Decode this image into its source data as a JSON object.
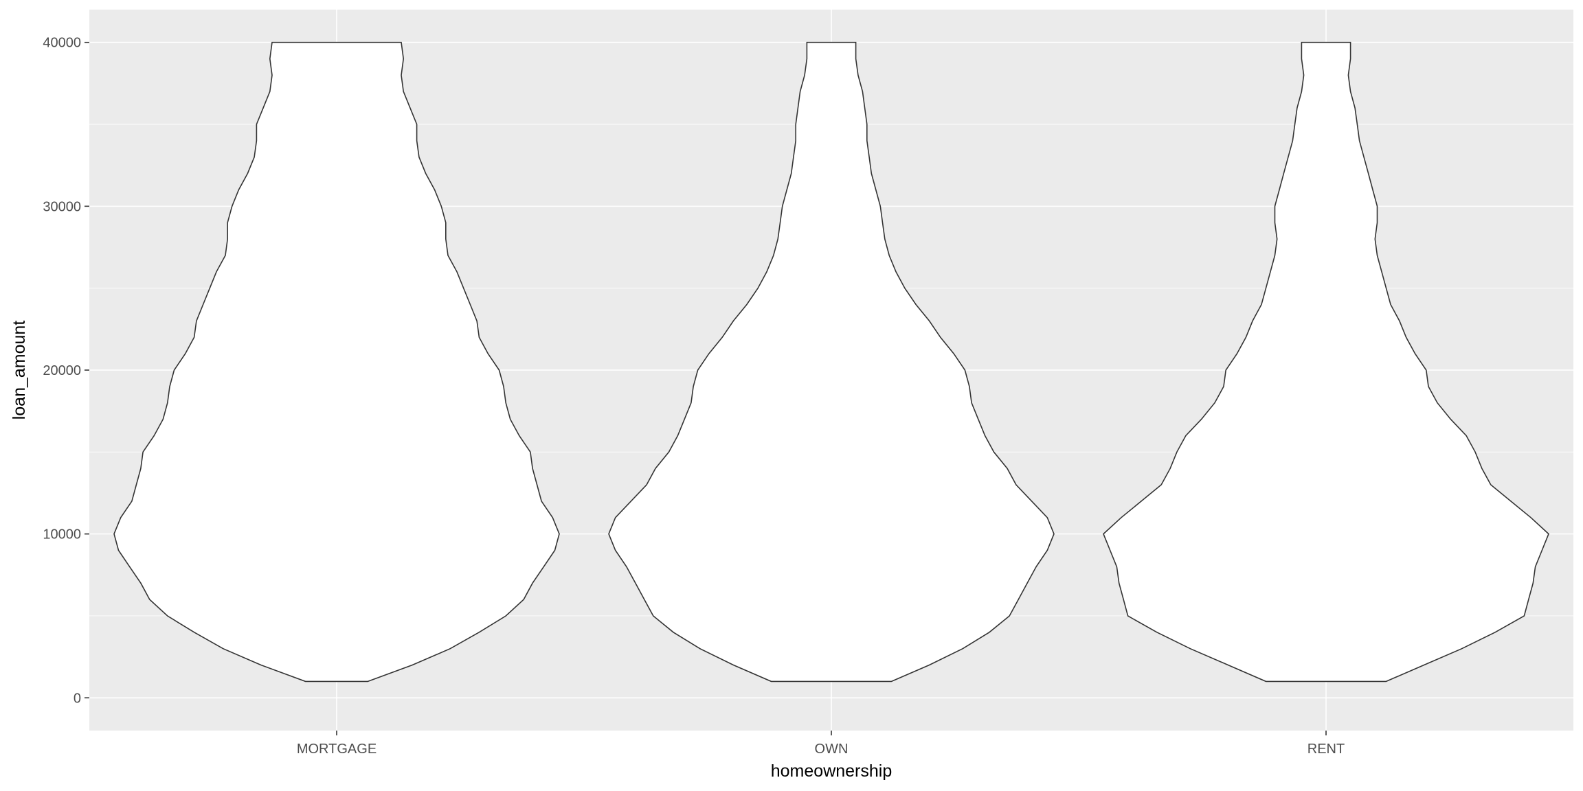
{
  "chart_data": {
    "type": "violin",
    "xlabel": "homeownership",
    "ylabel": "loan_amount",
    "categories": [
      "MORTGAGE",
      "OWN",
      "RENT"
    ],
    "ylim": [
      -2000,
      42000
    ],
    "y_ticks": [
      0,
      10000,
      20000,
      30000,
      40000
    ],
    "y_tick_labels": [
      "0",
      "10000",
      "20000",
      "30000",
      "40000"
    ],
    "grid": true,
    "legend": "none",
    "colors": {
      "panel_background": "#ebebeb",
      "grid": "#ffffff",
      "violin_fill": "#ffffff",
      "violin_outline": "#333333",
      "tick_label": "#4d4d4d",
      "axis_title": "#000000"
    },
    "violins": [
      {
        "category": "MORTGAGE",
        "range": [
          1000,
          40000
        ],
        "density_profile": [
          [
            1000,
            0.14
          ],
          [
            2000,
            0.34
          ],
          [
            3000,
            0.51
          ],
          [
            4000,
            0.64
          ],
          [
            5000,
            0.76
          ],
          [
            6000,
            0.84
          ],
          [
            7000,
            0.88
          ],
          [
            8000,
            0.93
          ],
          [
            9000,
            0.98
          ],
          [
            10000,
            1.0
          ],
          [
            11000,
            0.97
          ],
          [
            12000,
            0.92
          ],
          [
            13000,
            0.9
          ],
          [
            14000,
            0.88
          ],
          [
            15000,
            0.87
          ],
          [
            16000,
            0.82
          ],
          [
            17000,
            0.78
          ],
          [
            18000,
            0.76
          ],
          [
            19000,
            0.75
          ],
          [
            20000,
            0.73
          ],
          [
            21000,
            0.68
          ],
          [
            22000,
            0.64
          ],
          [
            23000,
            0.63
          ],
          [
            24000,
            0.6
          ],
          [
            25000,
            0.57
          ],
          [
            26000,
            0.54
          ],
          [
            27000,
            0.5
          ],
          [
            28000,
            0.49
          ],
          [
            29000,
            0.49
          ],
          [
            30000,
            0.47
          ],
          [
            31000,
            0.44
          ],
          [
            32000,
            0.4
          ],
          [
            33000,
            0.37
          ],
          [
            34000,
            0.36
          ],
          [
            35000,
            0.36
          ],
          [
            36000,
            0.33
          ],
          [
            37000,
            0.3
          ],
          [
            38000,
            0.29
          ],
          [
            39000,
            0.3
          ],
          [
            40000,
            0.29
          ]
        ]
      },
      {
        "category": "OWN",
        "range": [
          1000,
          40000
        ],
        "density_profile": [
          [
            1000,
            0.27
          ],
          [
            2000,
            0.44
          ],
          [
            3000,
            0.59
          ],
          [
            4000,
            0.71
          ],
          [
            5000,
            0.8
          ],
          [
            6000,
            0.84
          ],
          [
            7000,
            0.88
          ],
          [
            8000,
            0.92
          ],
          [
            9000,
            0.97
          ],
          [
            10000,
            1.0
          ],
          [
            11000,
            0.97
          ],
          [
            12000,
            0.9
          ],
          [
            13000,
            0.83
          ],
          [
            14000,
            0.79
          ],
          [
            15000,
            0.73
          ],
          [
            16000,
            0.69
          ],
          [
            17000,
            0.66
          ],
          [
            18000,
            0.63
          ],
          [
            19000,
            0.62
          ],
          [
            20000,
            0.6
          ],
          [
            21000,
            0.55
          ],
          [
            22000,
            0.49
          ],
          [
            23000,
            0.44
          ],
          [
            24000,
            0.38
          ],
          [
            25000,
            0.33
          ],
          [
            26000,
            0.29
          ],
          [
            27000,
            0.26
          ],
          [
            28000,
            0.24
          ],
          [
            29000,
            0.23
          ],
          [
            30000,
            0.22
          ],
          [
            31000,
            0.2
          ],
          [
            32000,
            0.18
          ],
          [
            33000,
            0.17
          ],
          [
            34000,
            0.16
          ],
          [
            35000,
            0.16
          ],
          [
            36000,
            0.15
          ],
          [
            37000,
            0.14
          ],
          [
            38000,
            0.12
          ],
          [
            39000,
            0.11
          ],
          [
            40000,
            0.11
          ]
        ]
      },
      {
        "category": "RENT",
        "range": [
          1000,
          40000
        ],
        "density_profile": [
          [
            1000,
            0.27
          ],
          [
            2000,
            0.44
          ],
          [
            3000,
            0.61
          ],
          [
            4000,
            0.76
          ],
          [
            5000,
            0.89
          ],
          [
            6000,
            0.91
          ],
          [
            7000,
            0.93
          ],
          [
            8000,
            0.94
          ],
          [
            9000,
            0.97
          ],
          [
            10000,
            1.0
          ],
          [
            11000,
            0.92
          ],
          [
            12000,
            0.83
          ],
          [
            13000,
            0.74
          ],
          [
            14000,
            0.7
          ],
          [
            15000,
            0.67
          ],
          [
            16000,
            0.63
          ],
          [
            17000,
            0.56
          ],
          [
            18000,
            0.5
          ],
          [
            19000,
            0.46
          ],
          [
            20000,
            0.45
          ],
          [
            21000,
            0.4
          ],
          [
            22000,
            0.36
          ],
          [
            23000,
            0.33
          ],
          [
            24000,
            0.29
          ],
          [
            25000,
            0.27
          ],
          [
            26000,
            0.25
          ],
          [
            27000,
            0.23
          ],
          [
            28000,
            0.22
          ],
          [
            29000,
            0.23
          ],
          [
            30000,
            0.23
          ],
          [
            31000,
            0.21
          ],
          [
            32000,
            0.19
          ],
          [
            33000,
            0.17
          ],
          [
            34000,
            0.15
          ],
          [
            35000,
            0.14
          ],
          [
            36000,
            0.13
          ],
          [
            37000,
            0.11
          ],
          [
            38000,
            0.1
          ],
          [
            39000,
            0.11
          ],
          [
            40000,
            0.11
          ]
        ]
      }
    ]
  }
}
